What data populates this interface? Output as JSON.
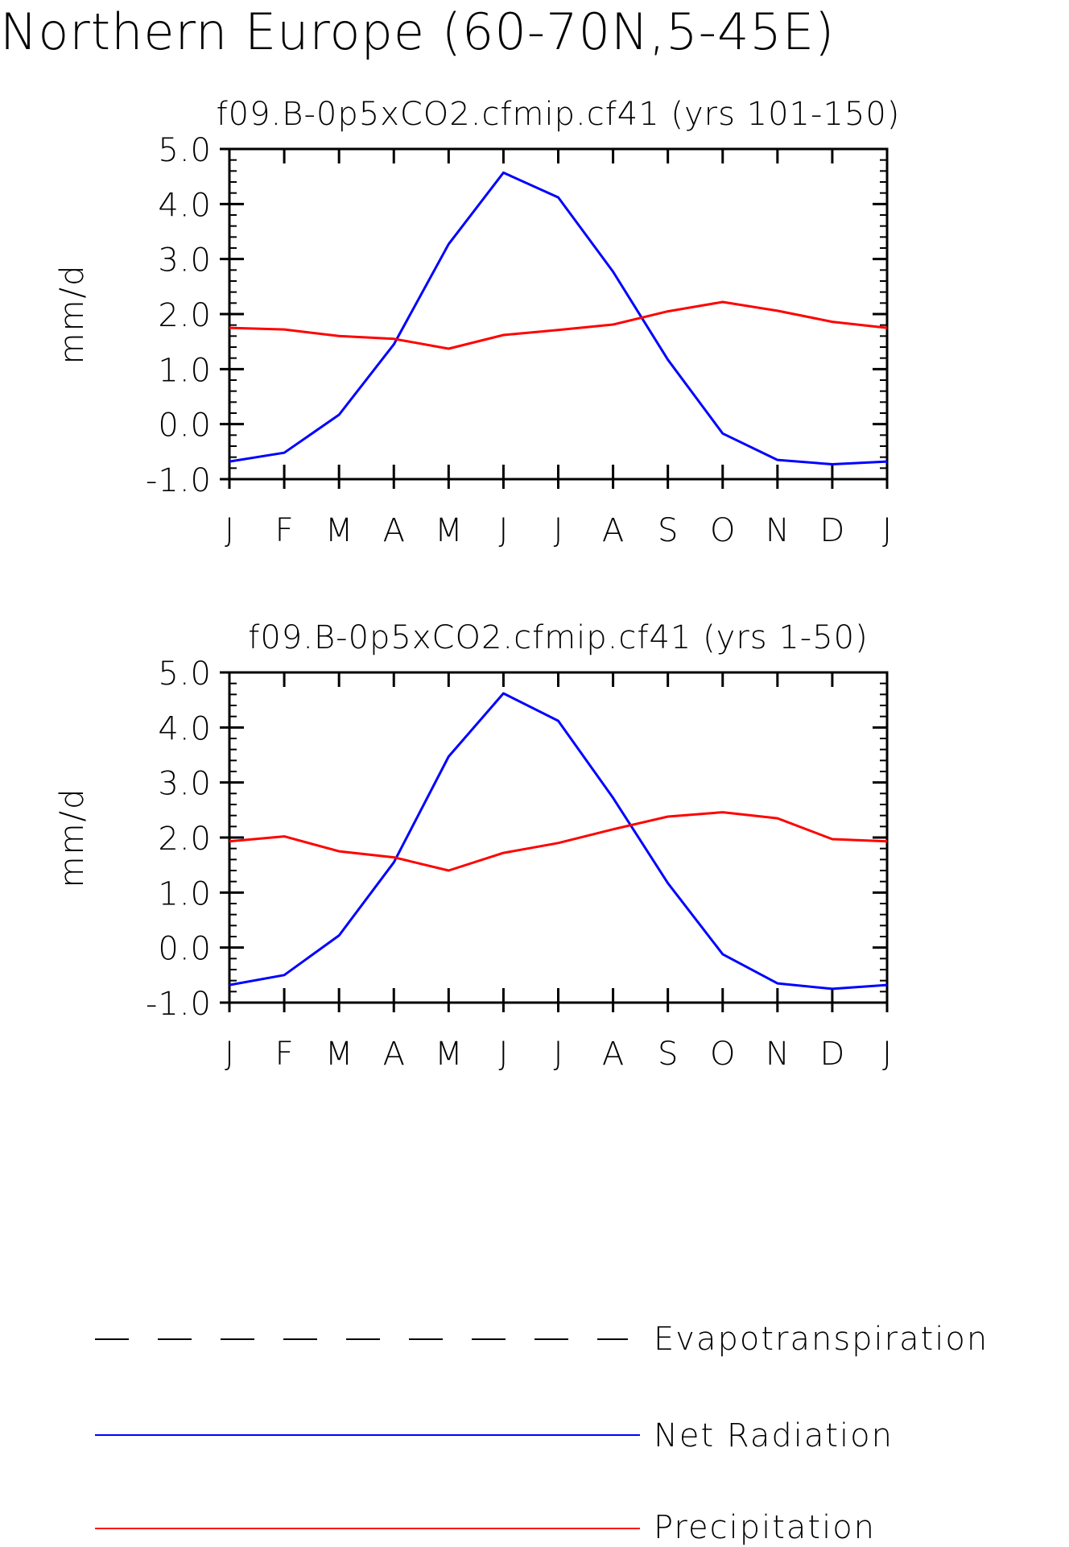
{
  "page_title": "Northern Europe (60-70N,5-45E)",
  "colors": {
    "net_radiation": "#0000ff",
    "precipitation": "#ff0000",
    "evapotranspiration": "#000000",
    "axes": "#000000"
  },
  "legend": {
    "items": [
      {
        "label": "Evapotranspiration",
        "style": "dashed",
        "color": "#000000"
      },
      {
        "label": "Net Radiation",
        "style": "solid",
        "color": "#0000ff"
      },
      {
        "label": "Precipitation",
        "style": "solid",
        "color": "#ff0000"
      }
    ]
  },
  "chart_data": [
    {
      "type": "line",
      "title": "f09.B-0p5xCO2.cfmip.cf41 (yrs 101-150)",
      "ylabel": "mm/d",
      "xlabel": "",
      "categories": [
        "J",
        "F",
        "M",
        "A",
        "M",
        "J",
        "J",
        "A",
        "S",
        "O",
        "N",
        "D",
        "J"
      ],
      "yticks": [
        "-1.0",
        "0.0",
        "1.0",
        "2.0",
        "3.0",
        "4.0",
        "5.0"
      ],
      "ylim": [
        -1.0,
        5.0
      ],
      "grid": false,
      "series": [
        {
          "name": "Net Radiation",
          "color": "#0000ff",
          "values": [
            -0.68,
            -0.52,
            0.17,
            1.45,
            3.27,
            4.57,
            4.12,
            2.77,
            1.17,
            -0.17,
            -0.65,
            -0.73,
            -0.68
          ]
        },
        {
          "name": "Precipitation",
          "color": "#ff0000",
          "values": [
            1.75,
            1.72,
            1.6,
            1.55,
            1.37,
            1.62,
            1.71,
            1.81,
            2.05,
            2.22,
            2.06,
            1.86,
            1.75
          ]
        }
      ]
    },
    {
      "type": "line",
      "title": "f09.B-0p5xCO2.cfmip.cf41 (yrs 1-50)",
      "ylabel": "mm/d",
      "xlabel": "",
      "categories": [
        "J",
        "F",
        "M",
        "A",
        "M",
        "J",
        "J",
        "A",
        "S",
        "O",
        "N",
        "D",
        "J"
      ],
      "yticks": [
        "-1.0",
        "0.0",
        "1.0",
        "2.0",
        "3.0",
        "4.0",
        "5.0"
      ],
      "ylim": [
        -1.0,
        5.0
      ],
      "grid": false,
      "series": [
        {
          "name": "Net Radiation",
          "color": "#0000ff",
          "values": [
            -0.68,
            -0.5,
            0.22,
            1.55,
            3.47,
            4.62,
            4.12,
            2.72,
            1.17,
            -0.12,
            -0.65,
            -0.75,
            -0.68
          ]
        },
        {
          "name": "Precipitation",
          "color": "#ff0000",
          "values": [
            1.93,
            2.02,
            1.75,
            1.64,
            1.4,
            1.72,
            1.9,
            2.15,
            2.38,
            2.46,
            2.35,
            1.97,
            1.93
          ]
        }
      ]
    }
  ]
}
